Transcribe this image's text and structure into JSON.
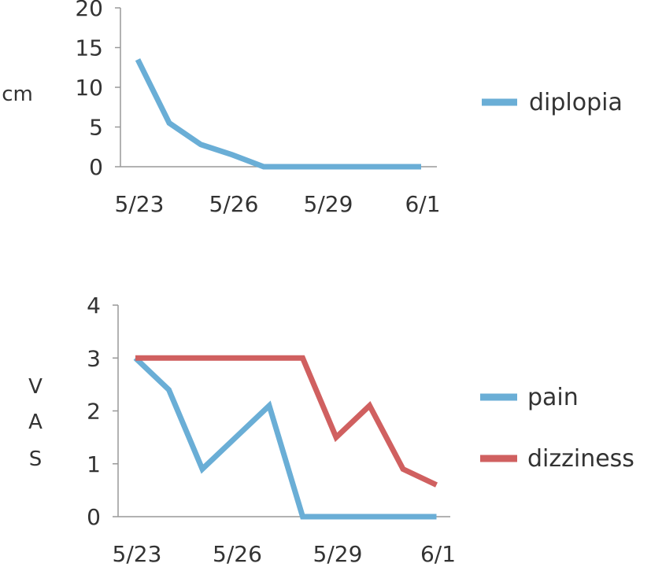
{
  "chart_data": [
    {
      "type": "line",
      "ylabel": "cm",
      "ylim": [
        0,
        20
      ],
      "yticks": [
        "0",
        "5",
        "10",
        "15",
        "20"
      ],
      "xticks": [
        "5/23",
        "5/26",
        "5/29",
        "6/1"
      ],
      "x": [
        "5/23",
        "5/24",
        "5/25",
        "5/26",
        "5/27",
        "5/28",
        "5/29",
        "5/30",
        "5/31",
        "6/1"
      ],
      "grid": false,
      "legend_position": "right",
      "series": [
        {
          "name": "diplopia",
          "color": "#6aaed6",
          "values": [
            13.5,
            5.5,
            2.8,
            1.5,
            0,
            0,
            0,
            0,
            0,
            0
          ]
        }
      ]
    },
    {
      "type": "line",
      "ylabel": "VAS",
      "ylabel_chars": [
        "V",
        "A",
        "S"
      ],
      "ylim": [
        0,
        4
      ],
      "yticks": [
        "0",
        "1",
        "2",
        "3",
        "4"
      ],
      "xticks": [
        "5/23",
        "5/26",
        "5/29",
        "6/1"
      ],
      "x": [
        "5/23",
        "5/24",
        "5/25",
        "5/26",
        "5/27",
        "5/28",
        "5/29",
        "5/30",
        "5/31",
        "6/1"
      ],
      "grid": false,
      "legend_position": "right",
      "series": [
        {
          "name": "pain",
          "color": "#6aaed6",
          "values": [
            3,
            2.4,
            0.9,
            1.5,
            2.1,
            0,
            0,
            0,
            0,
            0
          ]
        },
        {
          "name": "dizziness",
          "color": "#d06060",
          "values": [
            3,
            3,
            3,
            3,
            3,
            3,
            1.5,
            2.1,
            0.9,
            0.6
          ]
        }
      ]
    }
  ]
}
